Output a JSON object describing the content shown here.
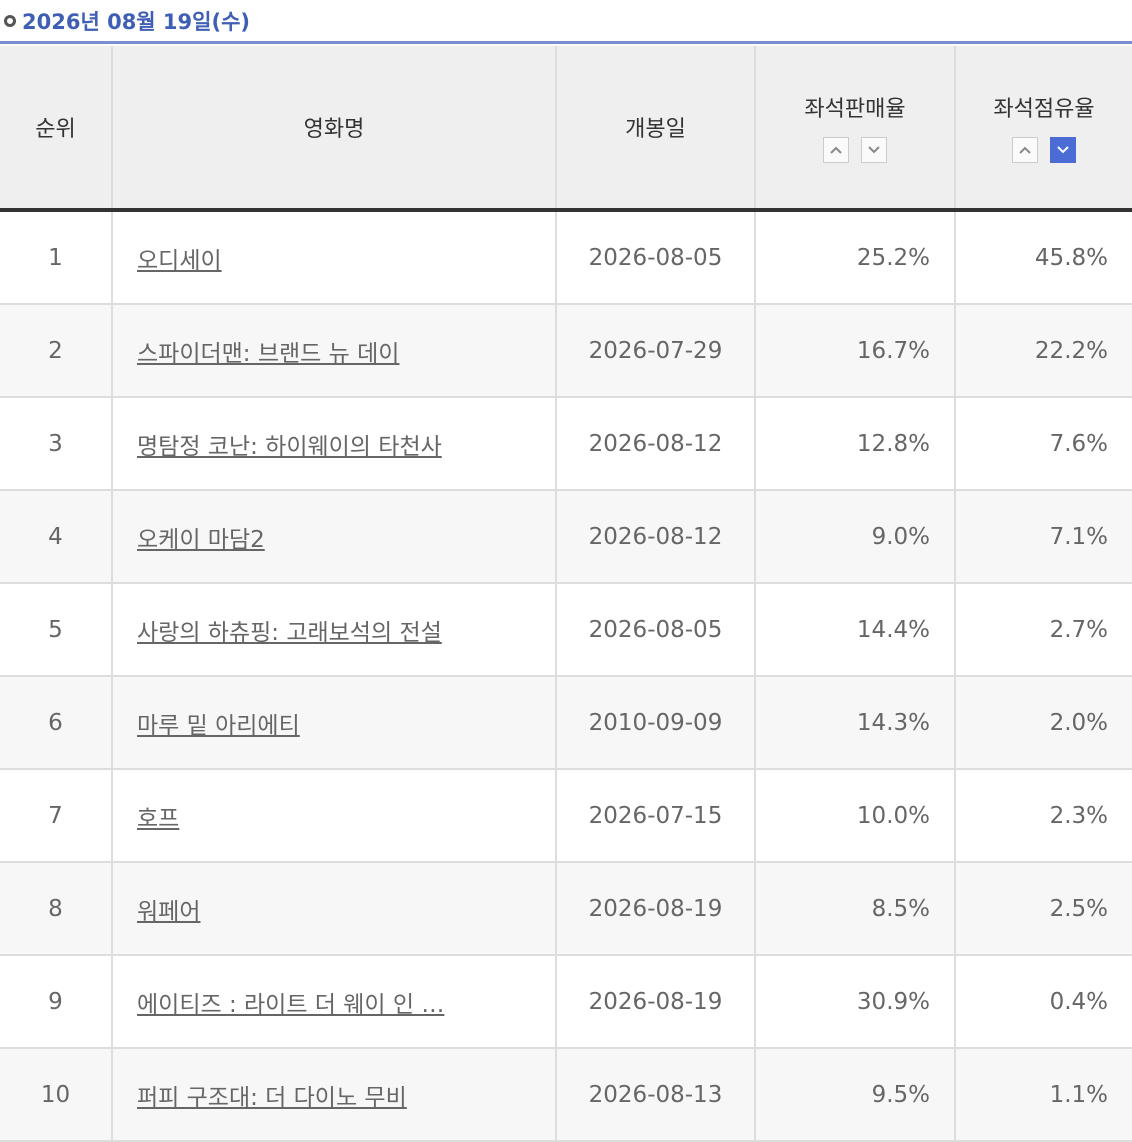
{
  "header": {
    "date": "2026년 08월 19일(수)"
  },
  "table": {
    "columns": [
      "순위",
      "영화명",
      "개봉일",
      "좌석판매율",
      "좌석점유율"
    ],
    "rows": [
      [
        "1",
        "오디세이",
        "2026-08-05",
        "25.2%",
        "45.8%"
      ],
      [
        "2",
        "스파이더맨: 브랜드 뉴 데이",
        "2026-07-29",
        "16.7%",
        "22.2%"
      ],
      [
        "3",
        "명탐정 코난: 하이웨이의 타천사",
        "2026-08-12",
        "12.8%",
        "7.6%"
      ],
      [
        "4",
        "오케이 마담2",
        "2026-08-12",
        "9.0%",
        "7.1%"
      ],
      [
        "5",
        "사랑의 하츄핑: 고래보석의 전설",
        "2026-08-05",
        "14.4%",
        "2.7%"
      ],
      [
        "6",
        "마루 밑 아리에티",
        "2010-09-09",
        "14.3%",
        "2.0%"
      ],
      [
        "7",
        "호프",
        "2026-07-15",
        "10.0%",
        "2.3%"
      ],
      [
        "8",
        "워페어",
        "2026-08-19",
        "8.5%",
        "2.5%"
      ],
      [
        "9",
        "에이티즈 : 라이트 더 웨이 인 …",
        "2026-08-19",
        "30.9%",
        "0.4%"
      ],
      [
        "10",
        "퍼피 구조대: 더 다이노 무비",
        "2026-08-13",
        "9.5%",
        "1.1%"
      ]
    ]
  }
}
